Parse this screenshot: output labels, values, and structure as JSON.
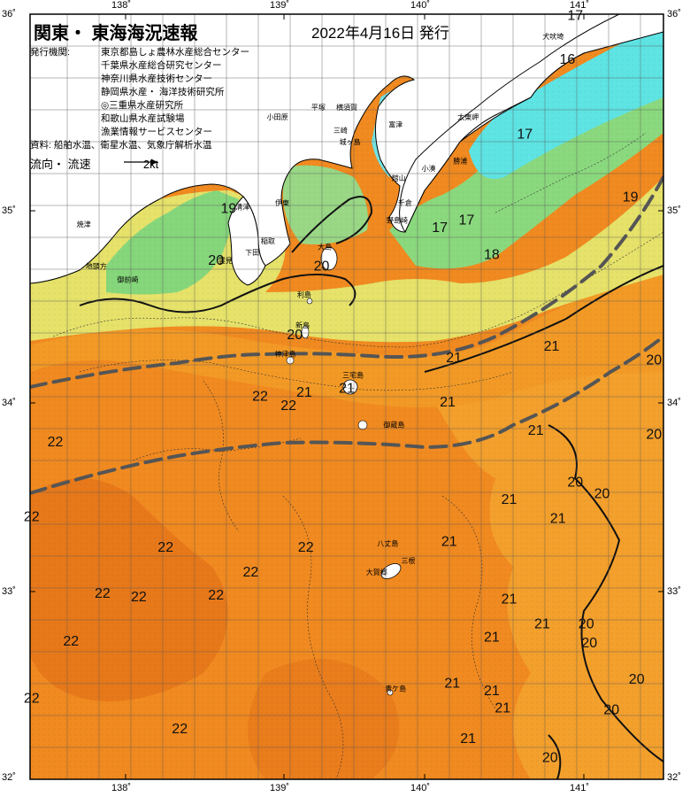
{
  "title": "関東・ 東海海況速報",
  "issue_date": "2022年4月16日 発行",
  "issuer_label": "発行機関:",
  "issuers": [
    "東京都島しょ農林水産総合センター",
    "千葉県水産総合研究センター",
    "神奈川県水産技術センター",
    "静岡県水産・ 海洋技術研究所",
    "◎三重県水産研究所",
    "和歌山県水産試験場",
    "漁業情報サービスセンター"
  ],
  "data_source": "資料: 船舶水温、衛星水温、気象庁解析水温",
  "legend": {
    "label": "流向・ 流速",
    "arrow_label": "2kt"
  },
  "axes": {
    "lon_ticks": [
      "138˚",
      "139˚",
      "140˚",
      "141˚"
    ],
    "lat_ticks": [
      "36˚",
      "35˚",
      "34˚",
      "33˚",
      "32˚"
    ]
  },
  "colors": {
    "warm": "#f28a1e",
    "mid": "#f5a12a",
    "cool_yellow": "#e8e86a",
    "green": "#7fd67a",
    "cyan": "#6fe6e6",
    "land": "#ffffff",
    "current": "#555555"
  },
  "temperature_labels": [
    {
      "t": "17",
      "lon": 140.99,
      "lat": 35.97
    },
    {
      "t": "16",
      "lon": 140.94,
      "lat": 35.74
    },
    {
      "t": "17",
      "lon": 140.67,
      "lat": 35.35
    },
    {
      "t": "17",
      "lon": 140.13,
      "lat": 34.86
    },
    {
      "t": "17",
      "lon": 140.3,
      "lat": 34.9
    },
    {
      "t": "18",
      "lon": 140.46,
      "lat": 34.72
    },
    {
      "t": "19",
      "lon": 141.34,
      "lat": 35.02
    },
    {
      "t": "19",
      "lon": 138.79,
      "lat": 34.96
    },
    {
      "t": "20",
      "lon": 138.71,
      "lat": 34.69
    },
    {
      "t": "20",
      "lon": 139.38,
      "lat": 34.66
    },
    {
      "t": "20",
      "lon": 139.21,
      "lat": 34.3
    },
    {
      "t": "21",
      "lon": 140.22,
      "lat": 34.18
    },
    {
      "t": "21",
      "lon": 140.84,
      "lat": 34.24
    },
    {
      "t": "20",
      "lon": 141.49,
      "lat": 34.17
    },
    {
      "t": "22",
      "lon": 138.99,
      "lat": 33.98
    },
    {
      "t": "21",
      "lon": 139.27,
      "lat": 34.0
    },
    {
      "t": "21",
      "lon": 139.54,
      "lat": 34.02
    },
    {
      "t": "22",
      "lon": 139.17,
      "lat": 33.93
    },
    {
      "t": "21",
      "lon": 140.18,
      "lat": 33.95
    },
    {
      "t": "21",
      "lon": 140.74,
      "lat": 33.8
    },
    {
      "t": "20",
      "lon": 141.49,
      "lat": 33.78
    },
    {
      "t": "22",
      "lon": 137.69,
      "lat": 33.74
    },
    {
      "t": "20",
      "lon": 140.99,
      "lat": 33.53
    },
    {
      "t": "20",
      "lon": 141.16,
      "lat": 33.47
    },
    {
      "t": "21",
      "lon": 140.57,
      "lat": 33.44
    },
    {
      "t": "21",
      "lon": 140.88,
      "lat": 33.34
    },
    {
      "t": "22",
      "lon": 137.54,
      "lat": 33.35
    },
    {
      "t": "22",
      "lon": 138.39,
      "lat": 33.19
    },
    {
      "t": "22",
      "lon": 139.28,
      "lat": 33.19
    },
    {
      "t": "21",
      "lon": 140.19,
      "lat": 33.22
    },
    {
      "t": "22",
      "lon": 138.93,
      "lat": 33.06
    },
    {
      "t": "22",
      "lon": 137.99,
      "lat": 32.95
    },
    {
      "t": "22",
      "lon": 138.22,
      "lat": 32.93
    },
    {
      "t": "22",
      "lon": 138.71,
      "lat": 32.94
    },
    {
      "t": "21",
      "lon": 140.57,
      "lat": 32.92
    },
    {
      "t": "21",
      "lon": 140.78,
      "lat": 32.79
    },
    {
      "t": "20",
      "lon": 141.06,
      "lat": 32.79
    },
    {
      "t": "22",
      "lon": 137.79,
      "lat": 32.7
    },
    {
      "t": "20",
      "lon": 141.08,
      "lat": 32.69
    },
    {
      "t": "21",
      "lon": 140.46,
      "lat": 32.72
    },
    {
      "t": "21",
      "lon": 140.21,
      "lat": 32.48
    },
    {
      "t": "21",
      "lon": 140.46,
      "lat": 32.44
    },
    {
      "t": "20",
      "lon": 141.38,
      "lat": 32.5
    },
    {
      "t": "21",
      "lon": 140.53,
      "lat": 32.35
    },
    {
      "t": "22",
      "lon": 137.54,
      "lat": 32.4
    },
    {
      "t": "22",
      "lon": 138.48,
      "lat": 32.24
    },
    {
      "t": "20",
      "lon": 141.22,
      "lat": 32.34
    },
    {
      "t": "21",
      "lon": 140.31,
      "lat": 32.19
    },
    {
      "t": "20",
      "lon": 140.83,
      "lat": 32.09
    }
  ],
  "place_labels": [
    {
      "n": "犬吠埼",
      "lon": 140.85,
      "lat": 35.87
    },
    {
      "n": "太東岬",
      "lon": 140.31,
      "lat": 35.45
    },
    {
      "n": "勝浦",
      "lon": 140.26,
      "lat": 35.22
    },
    {
      "n": "小湊",
      "lon": 140.06,
      "lat": 35.18
    },
    {
      "n": "富津",
      "lon": 139.85,
      "lat": 35.41
    },
    {
      "n": "館山",
      "lon": 139.87,
      "lat": 35.13
    },
    {
      "n": "千倉",
      "lon": 139.91,
      "lat": 35.0
    },
    {
      "n": "野島崎",
      "lon": 139.86,
      "lat": 34.91
    },
    {
      "n": "平塚",
      "lon": 139.36,
      "lat": 35.5
    },
    {
      "n": "横須賀",
      "lon": 139.54,
      "lat": 35.5
    },
    {
      "n": "小田原",
      "lon": 139.1,
      "lat": 35.45
    },
    {
      "n": "三崎",
      "lon": 139.5,
      "lat": 35.38
    },
    {
      "n": "城ヶ島",
      "lon": 139.56,
      "lat": 35.32
    },
    {
      "n": "伊東",
      "lon": 139.13,
      "lat": 35.0
    },
    {
      "n": "稲取",
      "lon": 139.04,
      "lat": 34.8
    },
    {
      "n": "下田",
      "lon": 138.94,
      "lat": 34.74
    },
    {
      "n": "雲見",
      "lon": 138.77,
      "lat": 34.7
    },
    {
      "n": "御前崎",
      "lon": 138.15,
      "lat": 34.6
    },
    {
      "n": "焼津",
      "lon": 137.87,
      "lat": 34.89
    },
    {
      "n": "地頭方",
      "lon": 137.95,
      "lat": 34.67
    },
    {
      "n": "大島",
      "lon": 139.4,
      "lat": 34.77
    },
    {
      "n": "利島",
      "lon": 139.27,
      "lat": 34.52
    },
    {
      "n": "新島",
      "lon": 139.26,
      "lat": 34.36
    },
    {
      "n": "神津島",
      "lon": 139.15,
      "lat": 34.21
    },
    {
      "n": "三宅島",
      "lon": 139.58,
      "lat": 34.1
    },
    {
      "n": "御蔵島",
      "lon": 139.84,
      "lat": 33.84
    },
    {
      "n": "八丈島",
      "lon": 139.8,
      "lat": 33.22
    },
    {
      "n": "三根",
      "lon": 139.93,
      "lat": 33.13
    },
    {
      "n": "大賀郷",
      "lon": 139.73,
      "lat": 33.07
    },
    {
      "n": "青ケ島",
      "lon": 139.85,
      "lat": 32.46
    },
    {
      "n": "清津",
      "lon": 138.88,
      "lat": 34.98
    }
  ]
}
